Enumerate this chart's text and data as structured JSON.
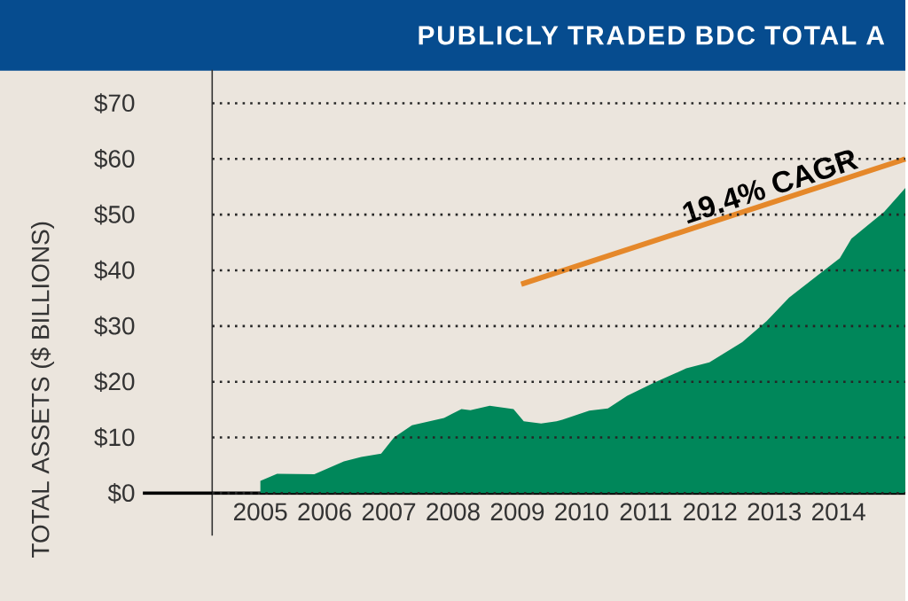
{
  "chart_data": {
    "type": "area",
    "title": "PUBLICLY TRADED BDC TOTAL A",
    "ylabel": "TOTAL ASSETS ($ BILLIONS)",
    "xlim": [
      2004.25,
      2015.04
    ],
    "ylim": [
      0,
      76
    ],
    "xticks": [
      2005,
      2006,
      2007,
      2008,
      2009,
      2010,
      2011,
      2012,
      2013,
      2014
    ],
    "yticks": [
      {
        "value": 0,
        "label": "$0"
      },
      {
        "value": 10,
        "label": "$10"
      },
      {
        "value": 20,
        "label": "$20"
      },
      {
        "value": 30,
        "label": "$30"
      },
      {
        "value": 40,
        "label": "$40"
      },
      {
        "value": 50,
        "label": "$50"
      },
      {
        "value": 60,
        "label": "$60"
      },
      {
        "value": 70,
        "label": "$70"
      }
    ],
    "grid": "y",
    "series": [
      {
        "color": "#00875a",
        "x": [
          2005.0,
          2005.26,
          2005.84,
          2006.3,
          2006.57,
          2006.88,
          2007.08,
          2007.36,
          2007.86,
          2008.13,
          2008.27,
          2008.57,
          2008.94,
          2009.1,
          2009.37,
          2009.61,
          2009.7,
          2010.12,
          2010.41,
          2010.71,
          2011.12,
          2011.63,
          2011.99,
          2012.5,
          2012.88,
          2013.23,
          2013.65,
          2014.02,
          2014.2,
          2014.71,
          2015.04
        ],
        "values": [
          2.2,
          3.5,
          3.4,
          5.7,
          6.5,
          7.1,
          10.0,
          12.2,
          13.5,
          15.1,
          14.9,
          15.7,
          15.1,
          12.9,
          12.5,
          12.9,
          13.2,
          14.8,
          15.2,
          17.5,
          19.8,
          22.4,
          23.5,
          27.1,
          30.9,
          35.1,
          38.9,
          42.2,
          45.7,
          50.5,
          54.8
        ]
      },
      {
        "type": "line",
        "color": "#e5882a",
        "x": [
          2009.06,
          2015.04
        ],
        "values": [
          37.5,
          60
        ]
      }
    ],
    "annotations": [
      "19.4% CAGR"
    ]
  }
}
